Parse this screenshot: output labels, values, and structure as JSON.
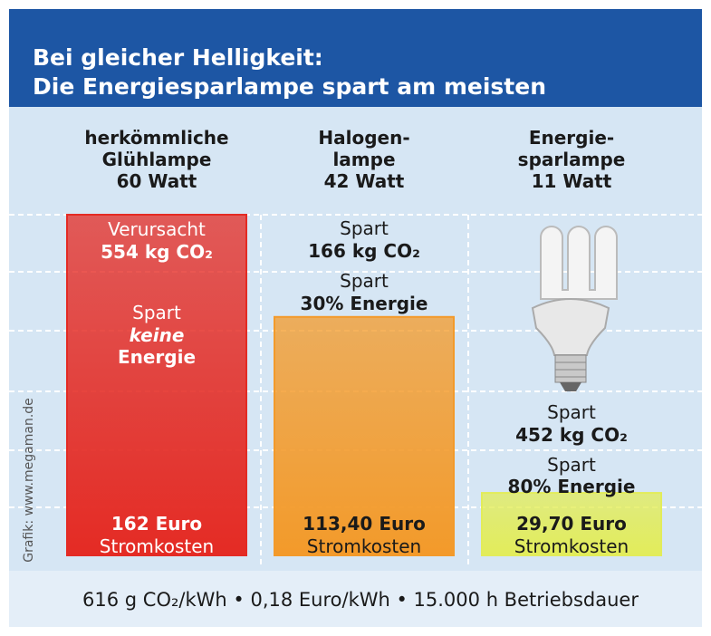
{
  "title": "Bei gleicher Helligkeit:",
  "subtitle": "Die Energiesparlampe spart am meisten",
  "chart_data": {
    "type": "bar",
    "categories": [
      "herkömmliche\nGlühlampe\n60 Watt",
      "Halogen-\nlampe\n42 Watt",
      "Energie-\nsparlampe\n11 Watt"
    ],
    "values": [
      162,
      113.4,
      29.7
    ],
    "value_labels": [
      "162 Euro",
      "113,40 Euro",
      "29,70 Euro"
    ],
    "value_captions": [
      "Stromkosten",
      "Stromkosten",
      "Stromkosten"
    ],
    "colors": [
      "#e42b24",
      "#f39a2a",
      "#e2ec5a"
    ],
    "annotations": [
      [
        "Verursacht",
        "554 kg CO₂",
        "Spart",
        "keine",
        "Energie"
      ],
      [
        "Spart",
        "166 kg CO₂",
        "Spart",
        "30% Energie"
      ],
      [
        "Spart",
        "452 kg CO₂",
        "Spart",
        "80% Energie"
      ]
    ]
  },
  "footer": "616 g CO₂/kWh • 0,18 Euro/kWh • 15.000 h Betriebsdauer",
  "source": "Grafik: www.megaman.de"
}
